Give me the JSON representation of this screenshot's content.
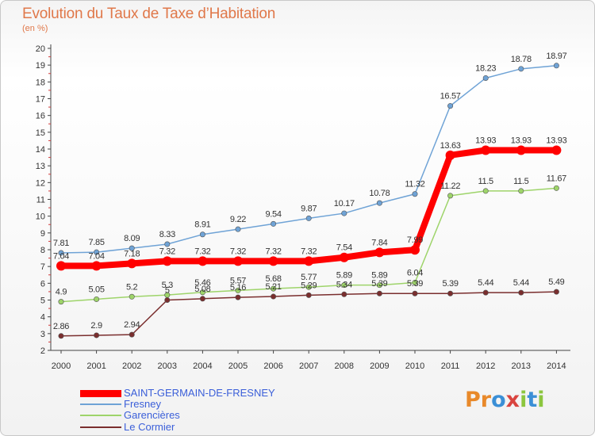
{
  "header": {
    "title": "Evolution du Taux de Taxe d’Habitation",
    "subtitle": "(en %)"
  },
  "logo": {
    "text": "Proxiti"
  },
  "chart_data": {
    "type": "line",
    "title": "Evolution du Taux de Taxe d’Habitation",
    "subtitle": "(en %)",
    "xlabel": "",
    "ylabel": "",
    "x": [
      2000,
      2001,
      2002,
      2003,
      2004,
      2005,
      2006,
      2007,
      2008,
      2009,
      2010,
      2011,
      2012,
      2013,
      2014
    ],
    "ylim": [
      2,
      20
    ],
    "yticks": [
      2,
      3,
      4,
      5,
      6,
      7,
      8,
      9,
      10,
      11,
      12,
      13,
      14,
      15,
      16,
      17,
      18,
      19,
      20
    ],
    "grid": false,
    "legend_position": "bottom-left",
    "series": [
      {
        "name": "SAINT-GERMAIN-DE-FRESNEY",
        "color": "#ff0000",
        "values": [
          7.04,
          7.04,
          7.18,
          7.32,
          7.32,
          7.32,
          7.32,
          7.32,
          7.54,
          7.84,
          7.99,
          13.63,
          13.93,
          13.93,
          13.93
        ]
      },
      {
        "name": "Fresney",
        "color": "#6fa3d6",
        "values": [
          7.81,
          7.85,
          8.09,
          8.33,
          8.91,
          9.22,
          9.54,
          9.87,
          10.17,
          10.78,
          11.32,
          16.57,
          18.23,
          18.78,
          18.97
        ]
      },
      {
        "name": "Garencières",
        "color": "#9ed46a",
        "values": [
          4.9,
          5.05,
          5.2,
          5.3,
          5.46,
          5.57,
          5.68,
          5.77,
          5.89,
          5.89,
          6.04,
          11.22,
          11.5,
          11.5,
          11.67
        ]
      },
      {
        "name": "Le Cormier",
        "color": "#7a2e2e",
        "values": [
          2.86,
          2.9,
          2.94,
          5.0,
          5.08,
          5.16,
          5.21,
          5.29,
          5.34,
          5.39,
          5.39,
          5.39,
          5.44,
          5.44,
          5.49
        ]
      }
    ]
  }
}
